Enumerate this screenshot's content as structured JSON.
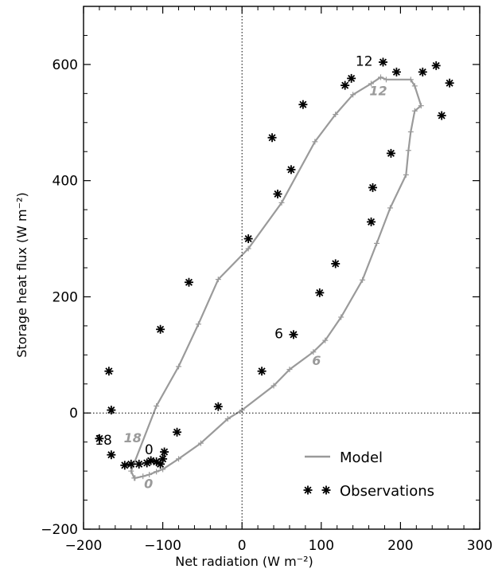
{
  "chart_data": {
    "type": "scatter",
    "xlabel": "Net radiation (W m⁻²)",
    "ylabel": "Storage heat flux (W m⁻²)",
    "xlim": [
      -200,
      300
    ],
    "ylim": [
      -200,
      700
    ],
    "xticks": [
      -200,
      -100,
      0,
      100,
      200,
      300
    ],
    "yticks": [
      -200,
      0,
      200,
      400,
      600
    ],
    "grid": false,
    "reference_lines": {
      "x": 0,
      "y": 0,
      "style": "dotted"
    },
    "legend": {
      "placement": "bottom-right",
      "model_label": "Model",
      "obs_label": "Observations"
    },
    "colors": {
      "model": "#9a9a9a",
      "observations": "#000000",
      "axes": "#000000"
    },
    "series": [
      {
        "name": "Model",
        "kind": "line-with-plus-markers",
        "points": [
          [
            -135,
            -112
          ],
          [
            -125,
            -109
          ],
          [
            -117,
            -106
          ],
          [
            -108,
            -101
          ],
          [
            -100,
            -97
          ],
          [
            -80,
            -79
          ],
          [
            -52,
            -52
          ],
          [
            -18,
            -10
          ],
          [
            0,
            5
          ],
          [
            40,
            47
          ],
          [
            60,
            75
          ],
          [
            90,
            105
          ],
          [
            105,
            125
          ],
          [
            125,
            165
          ],
          [
            152,
            229
          ],
          [
            170,
            292
          ],
          [
            187,
            353
          ],
          [
            207,
            410
          ],
          [
            210,
            452
          ],
          [
            213,
            484
          ],
          [
            218,
            520
          ],
          [
            226,
            529
          ],
          [
            218,
            563
          ],
          [
            213,
            574
          ],
          [
            182,
            574
          ],
          [
            175,
            578
          ],
          [
            163,
            567
          ],
          [
            140,
            548
          ],
          [
            118,
            514
          ],
          [
            92,
            467
          ],
          [
            50,
            362
          ],
          [
            8,
            283
          ],
          [
            -30,
            230
          ],
          [
            -55,
            153
          ],
          [
            -80,
            80
          ],
          [
            -108,
            12
          ],
          [
            -140,
            -100
          ],
          [
            -136,
            -112
          ]
        ]
      },
      {
        "name": "Observations",
        "kind": "asterisk",
        "points": [
          [
            -168,
            72
          ],
          [
            -165,
            5
          ],
          [
            -180,
            -44
          ],
          [
            -165,
            -72
          ],
          [
            -148,
            -90
          ],
          [
            -140,
            -88
          ],
          [
            -130,
            -88
          ],
          [
            -120,
            -86
          ],
          [
            -115,
            -82
          ],
          [
            -108,
            -84
          ],
          [
            -100,
            -79
          ],
          [
            -98,
            -67
          ],
          [
            -103,
            -88
          ],
          [
            -82,
            -33
          ],
          [
            -103,
            144
          ],
          [
            -67,
            225
          ],
          [
            -30,
            11
          ],
          [
            8,
            300
          ],
          [
            25,
            72
          ],
          [
            38,
            474
          ],
          [
            45,
            377
          ],
          [
            62,
            419
          ],
          [
            65,
            135
          ],
          [
            77,
            531
          ],
          [
            98,
            207
          ],
          [
            118,
            257
          ],
          [
            130,
            564
          ],
          [
            138,
            576
          ],
          [
            163,
            329
          ],
          [
            165,
            388
          ],
          [
            178,
            604
          ],
          [
            188,
            447
          ],
          [
            195,
            587
          ],
          [
            228,
            587
          ],
          [
            245,
            598
          ],
          [
            252,
            512
          ],
          [
            262,
            568
          ]
        ]
      }
    ],
    "annotations": {
      "observations": [
        {
          "text": "12",
          "x": 165,
          "y": 606
        },
        {
          "text": "6",
          "x": 52,
          "y": 137
        },
        {
          "text": "18",
          "x": -164,
          "y": -46
        },
        {
          "text": "0",
          "x": -112,
          "y": -63
        }
      ],
      "model": [
        {
          "text": "12",
          "x": 172,
          "y": 555
        },
        {
          "text": "6",
          "x": 94,
          "y": 91
        },
        {
          "text": "18",
          "x": -138,
          "y": -42
        },
        {
          "text": "0",
          "x": -118,
          "y": -121
        }
      ]
    }
  }
}
